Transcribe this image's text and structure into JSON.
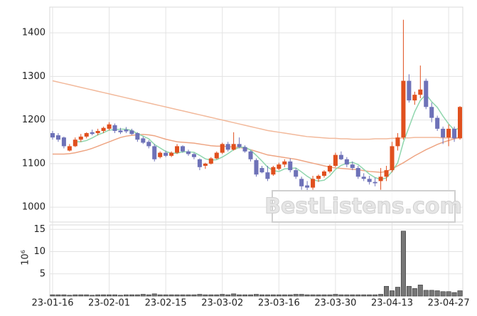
{
  "chart_data": [
    {
      "type": "candlestick",
      "ylim": [
        966,
        1459
      ],
      "yticks": [
        1000,
        1100,
        1200,
        1300,
        1400
      ],
      "grid": true,
      "up_color": "#e0501e",
      "down_color": "#6e72b8",
      "open": [
        1170,
        1165,
        1160,
        1130,
        1140,
        1155,
        1162,
        1172,
        1170,
        1175,
        1180,
        1188,
        1176,
        1178,
        1176,
        1170,
        1158,
        1150,
        1140,
        1115,
        1125,
        1118,
        1125,
        1140,
        1128,
        1122,
        1110,
        1095,
        1100,
        1112,
        1125,
        1145,
        1132,
        1145,
        1138,
        1128,
        1108,
        1090,
        1080,
        1075,
        1088,
        1098,
        1105,
        1085,
        1065,
        1050,
        1045,
        1065,
        1072,
        1082,
        1095,
        1120,
        1110,
        1098,
        1090,
        1070,
        1065,
        1058,
        1060,
        1070,
        1085,
        1140,
        1160,
        1290,
        1245,
        1258,
        1290,
        1230,
        1205,
        1180,
        1160,
        1180,
        1158
      ],
      "high": [
        1175,
        1170,
        1162,
        1145,
        1160,
        1168,
        1172,
        1178,
        1180,
        1185,
        1195,
        1192,
        1182,
        1184,
        1180,
        1172,
        1162,
        1154,
        1145,
        1128,
        1130,
        1128,
        1145,
        1142,
        1132,
        1125,
        1112,
        1102,
        1115,
        1128,
        1148,
        1150,
        1172,
        1160,
        1142,
        1130,
        1112,
        1095,
        1095,
        1095,
        1102,
        1110,
        1112,
        1090,
        1070,
        1060,
        1072,
        1075,
        1085,
        1098,
        1125,
        1128,
        1115,
        1105,
        1095,
        1078,
        1072,
        1068,
        1090,
        1095,
        1150,
        1170,
        1430,
        1305,
        1265,
        1325,
        1295,
        1240,
        1210,
        1185,
        1190,
        1185,
        1232
      ],
      "low": [
        1155,
        1150,
        1135,
        1128,
        1138,
        1150,
        1158,
        1165,
        1165,
        1170,
        1176,
        1170,
        1168,
        1170,
        1166,
        1150,
        1145,
        1135,
        1105,
        1112,
        1115,
        1115,
        1122,
        1125,
        1118,
        1110,
        1085,
        1088,
        1098,
        1110,
        1122,
        1128,
        1130,
        1135,
        1125,
        1105,
        1070,
        1078,
        1060,
        1072,
        1085,
        1092,
        1080,
        1065,
        1040,
        1035,
        1040,
        1058,
        1068,
        1078,
        1092,
        1108,
        1092,
        1085,
        1065,
        1060,
        1052,
        1048,
        1040,
        1060,
        1080,
        1130,
        1155,
        1240,
        1235,
        1250,
        1225,
        1195,
        1175,
        1145,
        1140,
        1150,
        1155
      ],
      "close": [
        1160,
        1155,
        1140,
        1140,
        1155,
        1162,
        1170,
        1168,
        1175,
        1182,
        1190,
        1175,
        1172,
        1174,
        1168,
        1155,
        1148,
        1140,
        1110,
        1125,
        1118,
        1125,
        1140,
        1128,
        1122,
        1115,
        1092,
        1100,
        1112,
        1125,
        1145,
        1132,
        1145,
        1138,
        1128,
        1110,
        1075,
        1080,
        1065,
        1092,
        1098,
        1105,
        1085,
        1070,
        1048,
        1045,
        1065,
        1072,
        1082,
        1095,
        1120,
        1110,
        1098,
        1090,
        1070,
        1065,
        1058,
        1055,
        1070,
        1085,
        1140,
        1160,
        1290,
        1245,
        1258,
        1270,
        1230,
        1205,
        1180,
        1160,
        1180,
        1158,
        1230
      ],
      "series": [
        {
          "color": "#f2b99b",
          "values": [
            1290,
            1287,
            1284,
            1281,
            1278,
            1275,
            1272,
            1269,
            1266,
            1263,
            1260,
            1257,
            1254,
            1251,
            1248,
            1245,
            1242,
            1239,
            1236,
            1233,
            1230,
            1227,
            1224,
            1221,
            1218,
            1215,
            1212,
            1209,
            1206,
            1203,
            1200,
            1197,
            1194,
            1191,
            1188,
            1185,
            1182,
            1179,
            1176,
            1174,
            1172,
            1170,
            1168,
            1166,
            1164,
            1162,
            1161,
            1160,
            1159,
            1158,
            1158,
            1157,
            1157,
            1156,
            1156,
            1156,
            1156,
            1157,
            1157,
            1157,
            1158,
            1158,
            1159,
            1159,
            1160,
            1160,
            1160,
            1160,
            1160,
            1159,
            1159,
            1159,
            1160
          ]
        },
        {
          "color": "#eea583",
          "values": [
            1122,
            1122,
            1122,
            1123,
            1125,
            1128,
            1131,
            1135,
            1140,
            1145,
            1150,
            1155,
            1160,
            1163,
            1165,
            1166,
            1167,
            1166,
            1164,
            1160,
            1156,
            1153,
            1150,
            1149,
            1148,
            1147,
            1145,
            1143,
            1141,
            1140,
            1140,
            1139,
            1138,
            1137,
            1135,
            1132,
            1128,
            1124,
            1120,
            1118,
            1116,
            1114,
            1112,
            1110,
            1107,
            1104,
            1101,
            1098,
            1095,
            1092,
            1090,
            1089,
            1088,
            1087,
            1086,
            1084,
            1082,
            1081,
            1080,
            1082,
            1088,
            1095,
            1102,
            1110,
            1118,
            1125,
            1132,
            1138,
            1144,
            1149,
            1153,
            1157,
            1160
          ]
        },
        {
          "color": "#8fd6ad",
          "values": [
            null,
            null,
            null,
            null,
            1150,
            1150,
            1153,
            1159,
            1166,
            1171,
            1177,
            1178,
            1179,
            1179,
            1176,
            1169,
            1163,
            1157,
            1144,
            1136,
            1128,
            1124,
            1124,
            1127,
            1127,
            1126,
            1119,
            1111,
            1108,
            1109,
            1115,
            1123,
            1132,
            1137,
            1138,
            1131,
            1119,
            1106,
            1092,
            1084,
            1082,
            1088,
            1089,
            1090,
            1081,
            1071,
            1063,
            1060,
            1062,
            1072,
            1087,
            1096,
            1101,
            1103,
            1098,
            1087,
            1076,
            1068,
            1064,
            1067,
            1082,
            1102,
            1149,
            1184,
            1219,
            1245,
            1259,
            1242,
            1229,
            1209,
            1191,
            1177,
            1182
          ]
        }
      ],
      "watermark": "BestListens.com"
    },
    {
      "type": "bar",
      "ylabel": "10⁶",
      "color": "#777777",
      "ylim": [
        0,
        16
      ],
      "yticks": [
        5,
        10,
        15
      ],
      "grid": true,
      "categories": [
        "23-01-16",
        null,
        null,
        null,
        null,
        null,
        null,
        null,
        null,
        null,
        "23-02-01",
        null,
        null,
        null,
        null,
        null,
        null,
        null,
        null,
        null,
        "23-02-15",
        null,
        null,
        null,
        null,
        null,
        null,
        null,
        null,
        null,
        "23-03-02",
        null,
        null,
        null,
        null,
        null,
        null,
        null,
        null,
        null,
        "23-03-16",
        null,
        null,
        null,
        null,
        null,
        null,
        null,
        null,
        null,
        "23-03-30",
        null,
        null,
        null,
        null,
        null,
        null,
        null,
        null,
        null,
        "23-04-13",
        null,
        null,
        null,
        null,
        null,
        null,
        null,
        null,
        null,
        "23-04-27",
        null,
        null
      ],
      "values": [
        0.3,
        0.3,
        0.3,
        0.2,
        0.3,
        0.3,
        0.3,
        0.2,
        0.3,
        0.3,
        0.3,
        0.3,
        0.2,
        0.3,
        0.3,
        0.3,
        0.4,
        0.3,
        0.5,
        0.3,
        0.3,
        0.3,
        0.3,
        0.3,
        0.3,
        0.3,
        0.4,
        0.3,
        0.3,
        0.3,
        0.4,
        0.3,
        0.5,
        0.3,
        0.3,
        0.3,
        0.4,
        0.3,
        0.3,
        0.3,
        0.3,
        0.3,
        0.3,
        0.4,
        0.4,
        0.3,
        0.3,
        0.3,
        0.3,
        0.3,
        0.4,
        0.3,
        0.3,
        0.3,
        0.3,
        0.3,
        0.3,
        0.3,
        0.4,
        2.2,
        1.2,
        2.0,
        14.6,
        2.2,
        1.7,
        2.5,
        1.3,
        1.3,
        1.2,
        1.0,
        1.0,
        0.8,
        1.2
      ]
    }
  ]
}
